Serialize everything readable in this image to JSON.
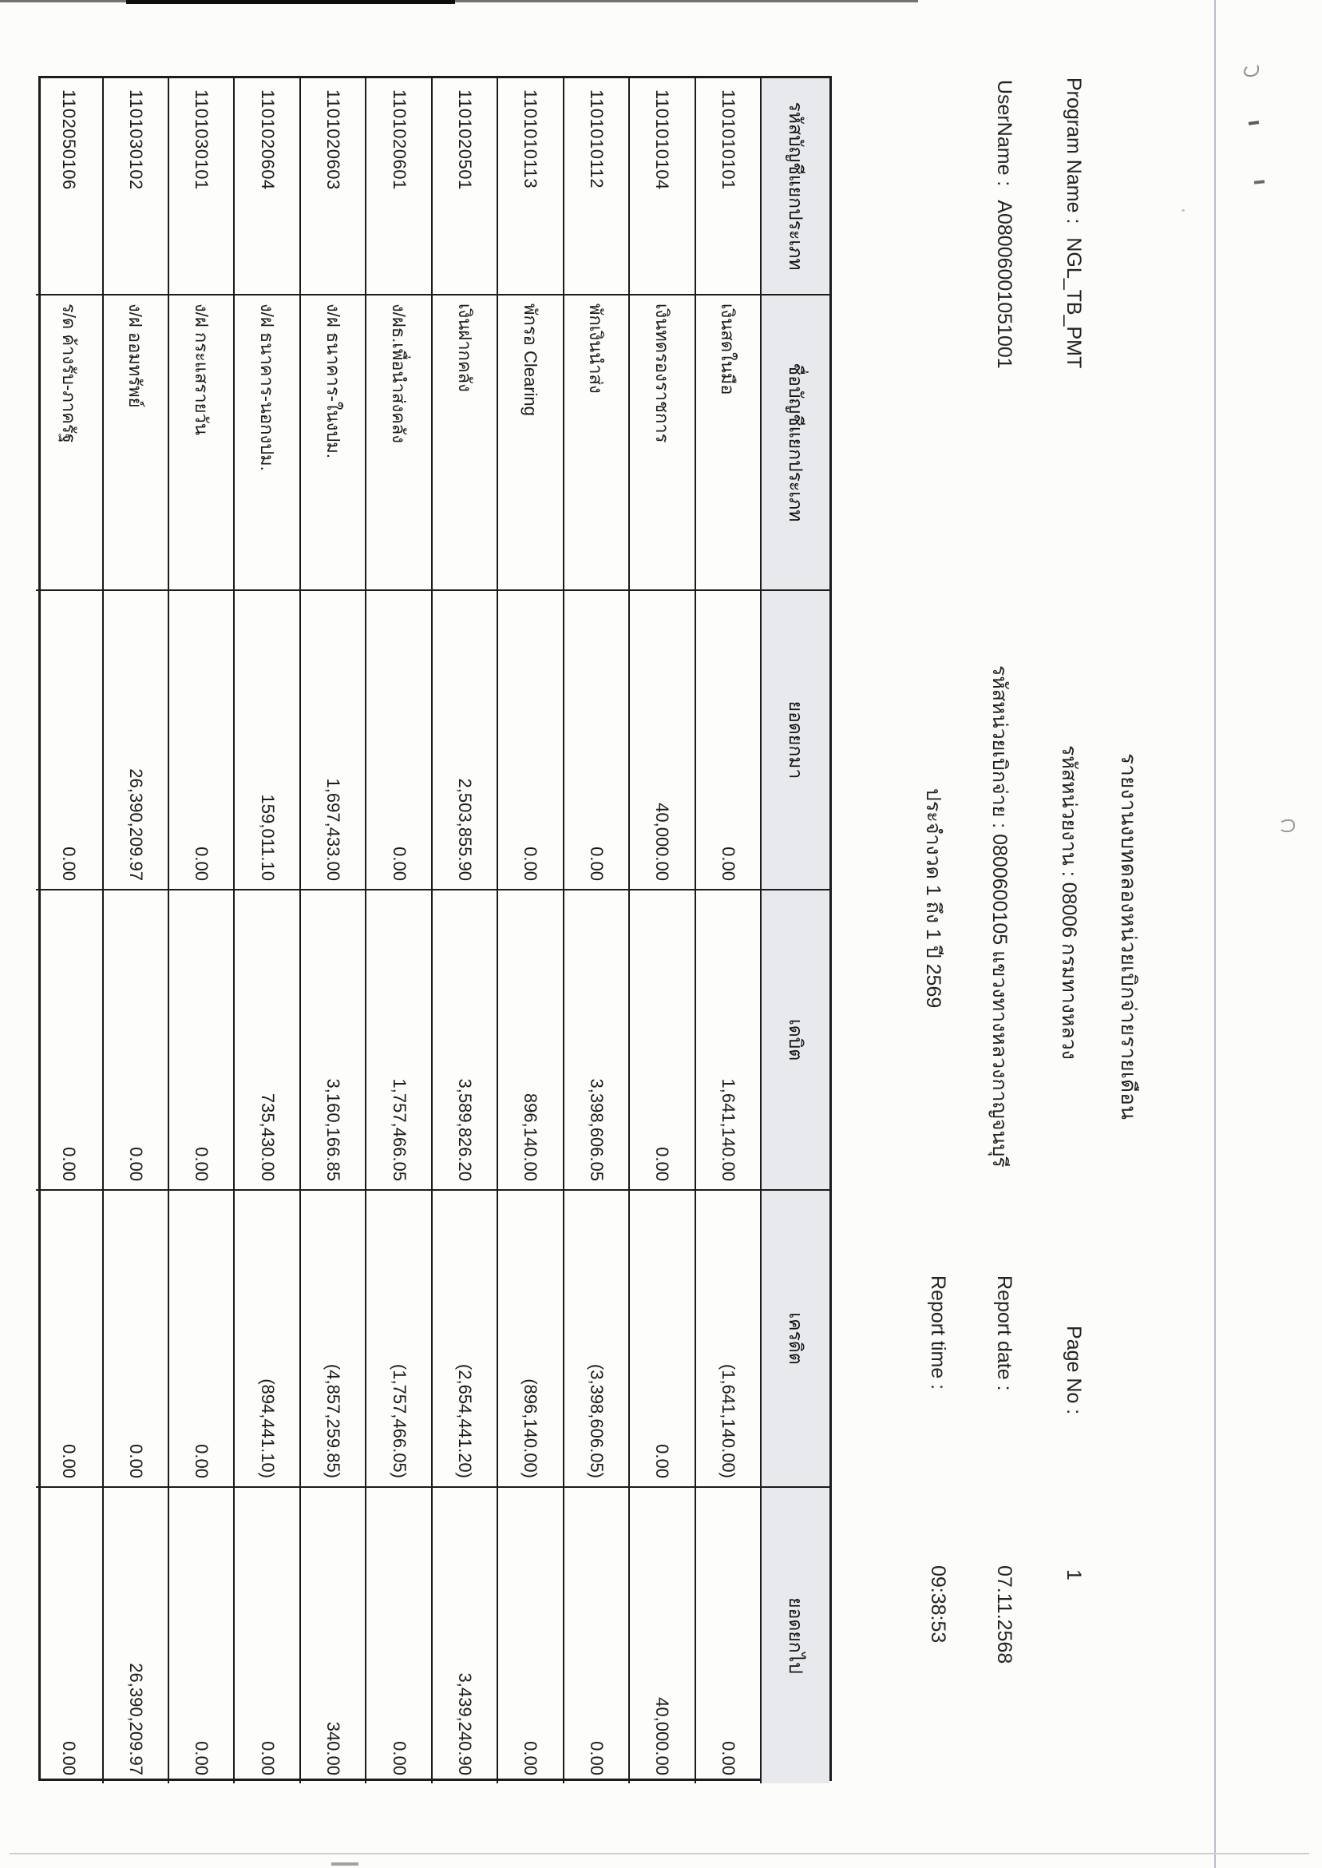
{
  "report": {
    "title": "รายงานงบทดลองหน่วยเบิกจ่ายรายเดือน",
    "program_name_label": "Program Name :",
    "program_name": "NGL_TB_PMT",
    "username_label": "UserName :",
    "username": "A08006001051001",
    "agency_line": "รหัสหน่วยงาน : 08006 กรมทางหลวง",
    "disbursement_unit_line": "รหัสหน่วยเบิกจ่าย : 0800600105 แขวงทางหลวงกาญจนบุรี",
    "period_line": "ประจำงวด 1 ถึง 1 ปี 2569",
    "page_no_label": "Page No :",
    "page_no": "1",
    "report_date_label": "Report date :",
    "report_date": "07.11.2568",
    "report_time_label": "Report time :",
    "report_time": "09:38:53"
  },
  "table": {
    "columns": [
      "รหัสบัญชีแยกประเภท",
      "ชื่อบัญชีแยกประเภท",
      "ยอดยกมา",
      "เดบิต",
      "เครดิต",
      "ยอดยกไป"
    ],
    "rows": [
      {
        "code": "1101010101",
        "name": "เงินสดในมือ",
        "bf": "0.00",
        "debit": "1,641,140.00",
        "credit": "(1,641,140.00)",
        "cf": "0.00"
      },
      {
        "code": "1101010104",
        "name": "เงินทดรองราชการ",
        "bf": "40,000.00",
        "debit": "0.00",
        "credit": "0.00",
        "cf": "40,000.00"
      },
      {
        "code": "1101010112",
        "name": "พักเงินนำส่ง",
        "bf": "0.00",
        "debit": "3,398,606.05",
        "credit": "(3,398,606.05)",
        "cf": "0.00"
      },
      {
        "code": "1101010113",
        "name": "พักรอ Clearing",
        "bf": "0.00",
        "debit": "896,140.00",
        "credit": "(896,140.00)",
        "cf": "0.00"
      },
      {
        "code": "1101020501",
        "name": "เงินฝากคลัง",
        "bf": "2,503,855.90",
        "debit": "3,589,826.20",
        "credit": "(2,654,441.20)",
        "cf": "3,439,240.90"
      },
      {
        "code": "1101020601",
        "name": "ง/ฝธ.เพื่อนำส่งคลัง",
        "bf": "0.00",
        "debit": "1,757,466.05",
        "credit": "(1,757,466.05)",
        "cf": "0.00"
      },
      {
        "code": "1101020603",
        "name": "ง/ฝ ธนาคาร-ในงปม.",
        "bf": "1,697,433.00",
        "debit": "3,160,166.85",
        "credit": "(4,857,259.85)",
        "cf": "340.00"
      },
      {
        "code": "1101020604",
        "name": "ง/ฝ ธนาคาร-นอกงปม.",
        "bf": "159,011.10",
        "debit": "735,430.00",
        "credit": "(894,441.10)",
        "cf": "0.00"
      },
      {
        "code": "1101030101",
        "name": "ง/ฝ กระแสรายวัน",
        "bf": "0.00",
        "debit": "0.00",
        "credit": "0.00",
        "cf": "0.00"
      },
      {
        "code": "1101030102",
        "name": "ง/ฝ ออมทรัพย์",
        "bf": "26,390,209.97",
        "debit": "0.00",
        "credit": "0.00",
        "cf": "26,390,209.97"
      },
      {
        "code": "1102050106",
        "name": "ร/ด ค้างรับ-ภาครัฐ",
        "bf": "0.00",
        "debit": "0.00",
        "credit": "0.00",
        "cf": "0.00"
      }
    ]
  }
}
